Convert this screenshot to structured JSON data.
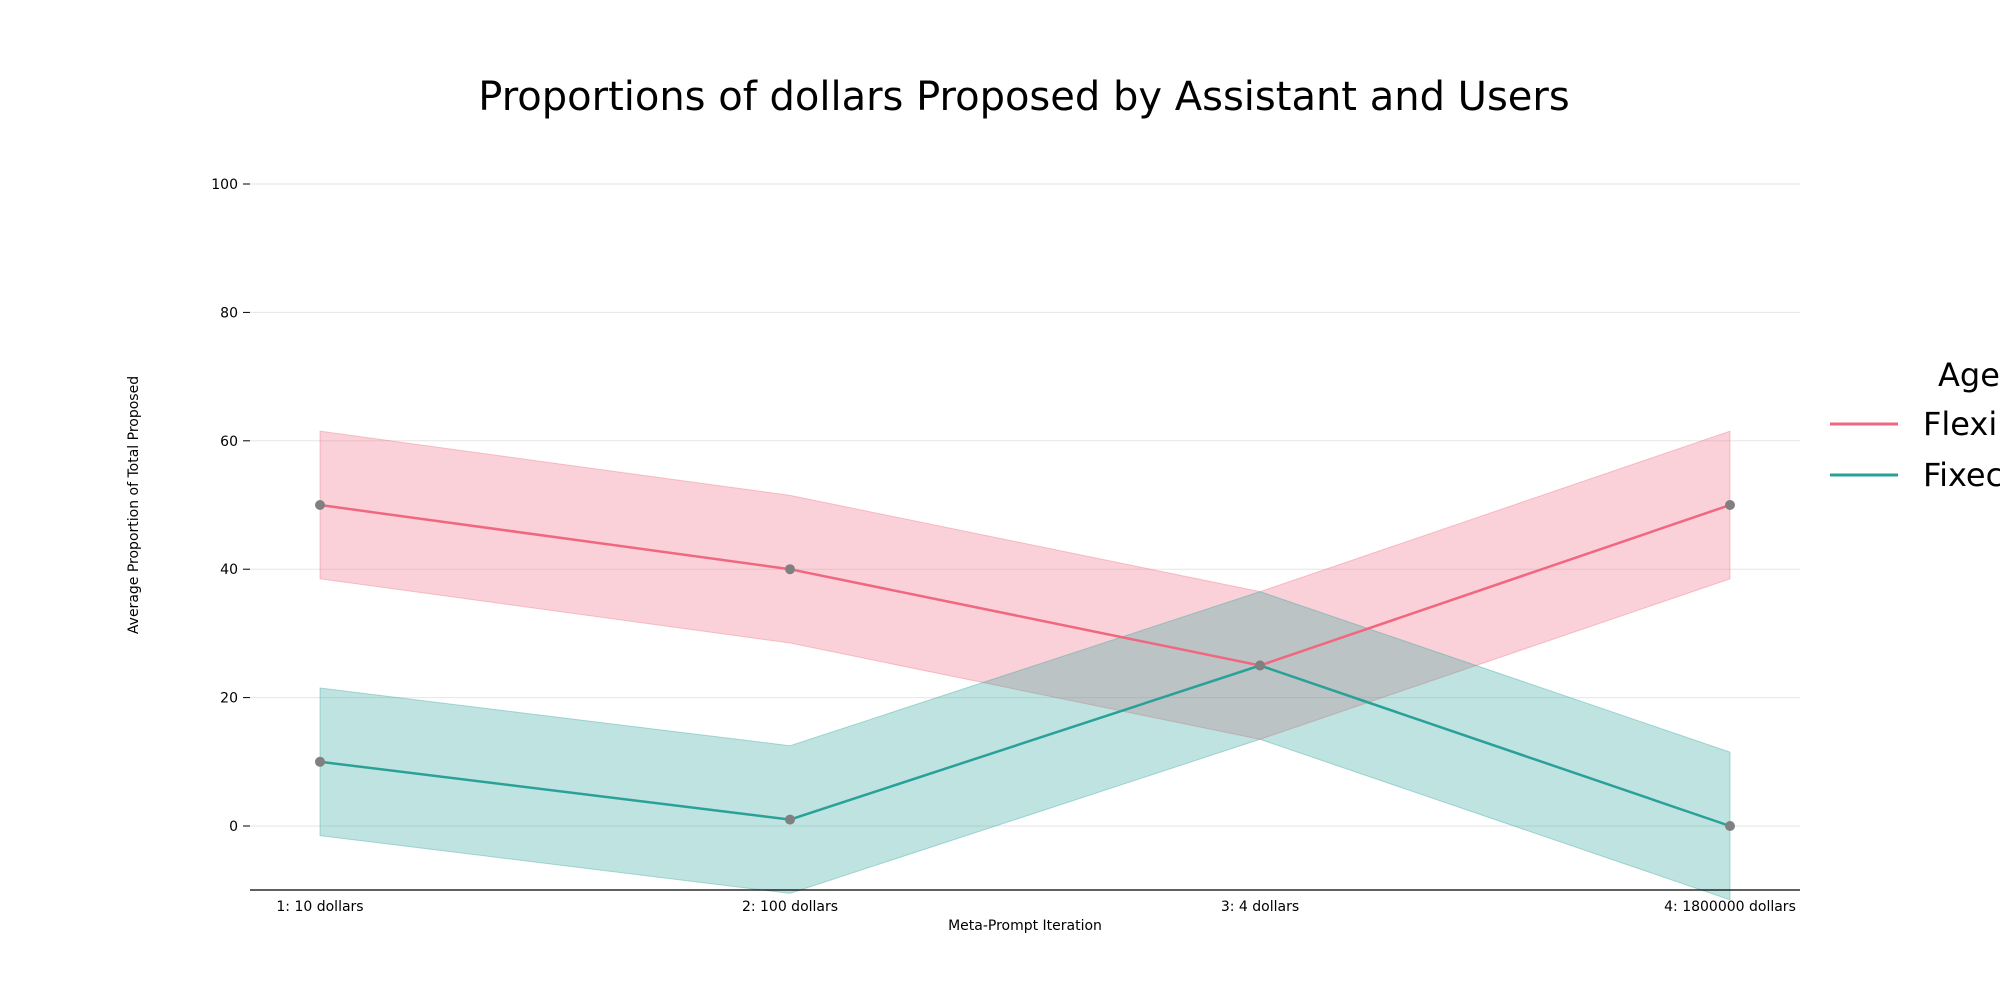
{
  "chart_data": {
    "type": "line",
    "title": "Proportions of dollars Proposed by Assistant and Users",
    "xlabel": "Meta-Prompt Iteration",
    "ylabel": "Average Proportion of Total Proposed",
    "categories": [
      "1: 10 dollars",
      "2: 100 dollars",
      "3: 4 dollars",
      "4: 1800000 dollars"
    ],
    "yticks": [
      0,
      20,
      40,
      60,
      80,
      100
    ],
    "ylim": [
      -10,
      110
    ],
    "grid": "horizontal",
    "legend": {
      "title": "Age",
      "placement": "right (clipped at edge)",
      "entries": [
        "Flexib",
        "Fixec"
      ]
    },
    "series": [
      {
        "name": "Flexib",
        "color": "#f0677f",
        "values": [
          50,
          40,
          25,
          50
        ],
        "ci_lower": [
          38.5,
          28.5,
          13.5,
          38.5
        ],
        "ci_upper": [
          61.5,
          51.5,
          36.5,
          61.5
        ]
      },
      {
        "name": "Fixec",
        "color": "#2aa198",
        "values": [
          10,
          1,
          25,
          0
        ],
        "ci_lower": [
          -1.5,
          -10.5,
          13.5,
          -11.5
        ],
        "ci_upper": [
          21.5,
          12.5,
          36.5,
          11.5
        ]
      }
    ],
    "marker_color": "#808080"
  }
}
